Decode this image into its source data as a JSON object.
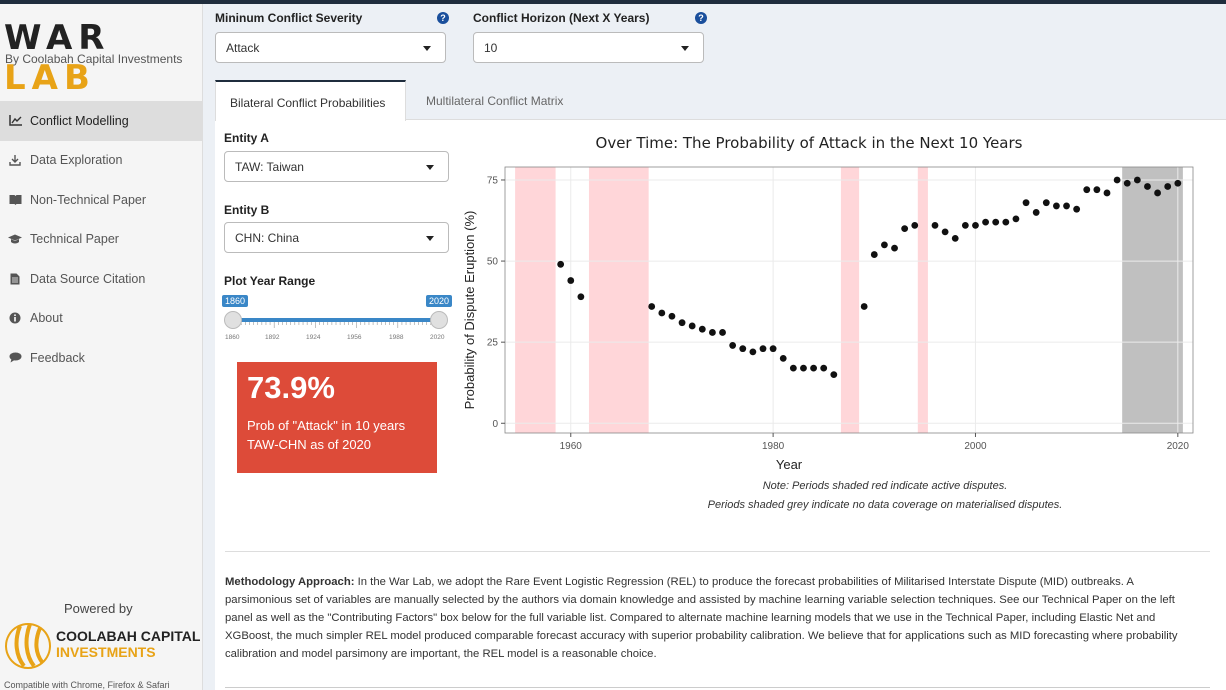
{
  "app": {
    "title_part1": "WAR ",
    "title_part2": "LAB",
    "subtitle": "By Coolabah Capital Investments"
  },
  "sidebar": {
    "items": [
      {
        "label": "Conflict Modelling",
        "icon": "line-chart-icon"
      },
      {
        "label": "Data Exploration",
        "icon": "download-icon"
      },
      {
        "label": "Non-Technical Paper",
        "icon": "book-icon"
      },
      {
        "label": "Technical Paper",
        "icon": "graduation-cap-icon"
      },
      {
        "label": "Data Source Citation",
        "icon": "file-icon"
      },
      {
        "label": "About",
        "icon": "info-icon"
      },
      {
        "label": "Feedback",
        "icon": "comment-icon"
      }
    ],
    "powered_by": "Powered by",
    "brand_line1": "COOLABAH CAPITAL",
    "brand_line2": "INVESTMENTS",
    "compat": "Compatible with Chrome, Firefox & Safari"
  },
  "controls": {
    "severity_label": "Mininum Conflict Severity",
    "severity_value": "Attack",
    "horizon_label": "Conflict Horizon (Next X Years)",
    "horizon_value": "10",
    "help": "?"
  },
  "tabs": [
    {
      "label": "Bilateral Conflict Probabilities"
    },
    {
      "label": "Multilateral Conflict Matrix"
    }
  ],
  "inputs": {
    "entity_a_label": "Entity A",
    "entity_a_value": "TAW: Taiwan",
    "entity_b_label": "Entity B",
    "entity_b_value": "CHN: China",
    "range_label": "Plot Year Range",
    "range_min": "1860",
    "range_max": "2020",
    "range_ticks": [
      "1860",
      "1892",
      "1924",
      "1956",
      "1988",
      "2020"
    ]
  },
  "result": {
    "value": "73.9%",
    "line1": "Prob of \"Attack\" in 10 years",
    "line2": "TAW-CHN as of 2020",
    "color": "#dd4b39"
  },
  "chart_data": {
    "type": "scatter",
    "title": "Over Time: The Probability of Attack in the Next 10 Years",
    "xlabel": "Year",
    "ylabel": "Probability of Dispute Eruption (%)",
    "xlim": [
      1953.5,
      2021.5
    ],
    "ylim": [
      -3,
      79
    ],
    "xticks": [
      1960,
      1980,
      2000,
      2020
    ],
    "yticks": [
      0,
      25,
      50,
      75
    ],
    "points": [
      [
        1959,
        49
      ],
      [
        1960,
        44
      ],
      [
        1961,
        39
      ],
      [
        1968,
        36
      ],
      [
        1969,
        34
      ],
      [
        1970,
        33
      ],
      [
        1971,
        31
      ],
      [
        1972,
        30
      ],
      [
        1973,
        29
      ],
      [
        1974,
        28
      ],
      [
        1975,
        28
      ],
      [
        1976,
        24
      ],
      [
        1977,
        23
      ],
      [
        1978,
        22
      ],
      [
        1979,
        23
      ],
      [
        1980,
        23
      ],
      [
        1981,
        20
      ],
      [
        1982,
        17
      ],
      [
        1983,
        17
      ],
      [
        1984,
        17
      ],
      [
        1985,
        17
      ],
      [
        1986,
        15
      ],
      [
        1989,
        36
      ],
      [
        1990,
        52
      ],
      [
        1991,
        55
      ],
      [
        1992,
        54
      ],
      [
        1993,
        60
      ],
      [
        1994,
        61
      ],
      [
        1996,
        61
      ],
      [
        1997,
        59
      ],
      [
        1998,
        57
      ],
      [
        1999,
        61
      ],
      [
        2000,
        61
      ],
      [
        2001,
        62
      ],
      [
        2002,
        62
      ],
      [
        2003,
        62
      ],
      [
        2004,
        63
      ],
      [
        2005,
        68
      ],
      [
        2006,
        65
      ],
      [
        2007,
        68
      ],
      [
        2008,
        67
      ],
      [
        2009,
        67
      ],
      [
        2010,
        66
      ],
      [
        2011,
        72
      ],
      [
        2012,
        72
      ],
      [
        2013,
        71
      ],
      [
        2014,
        75
      ],
      [
        2015,
        74
      ],
      [
        2016,
        75
      ],
      [
        2017,
        73
      ],
      [
        2018,
        71
      ],
      [
        2019,
        73
      ],
      [
        2020,
        74
      ]
    ],
    "red_periods": [
      [
        1954.5,
        1958.5
      ],
      [
        1961.8,
        1967.7
      ],
      [
        1986.7,
        1988.5
      ],
      [
        1994.3,
        1995.3
      ]
    ],
    "grey_periods": [
      [
        2014.5,
        2020.5
      ]
    ],
    "red_color": "#ffd6d9",
    "grey_color": "#c0c0c0",
    "note_line1": "Note: Periods shaded red indicate active disputes.",
    "note_line2": "Periods shaded grey indicate no data coverage on materialised disputes."
  },
  "methodology": {
    "heading": "Methodology Approach:",
    "text": " In the War Lab, we adopt the Rare Event Logistic Regression (REL) to produce the forecast probabilities of Militarised Interstate Dispute (MID) outbreaks. A parsimonious set of variables are manually selected by the authors via domain knowledge and assisted by machine learning variable selection techniques. See our Technical Paper on the left panel as well as the \"Contributing Factors\" box below for the full variable list. Compared to alternate machine learning models that we use in the Technical Paper, including Elastic Net and XGBoost, the much simpler REL model produced comparable forecast accuracy with superior probability calibration. We believe that for applications such as MID forecasting where probability calibration and model parsimony are important, the REL model is a reasonable choice."
  }
}
